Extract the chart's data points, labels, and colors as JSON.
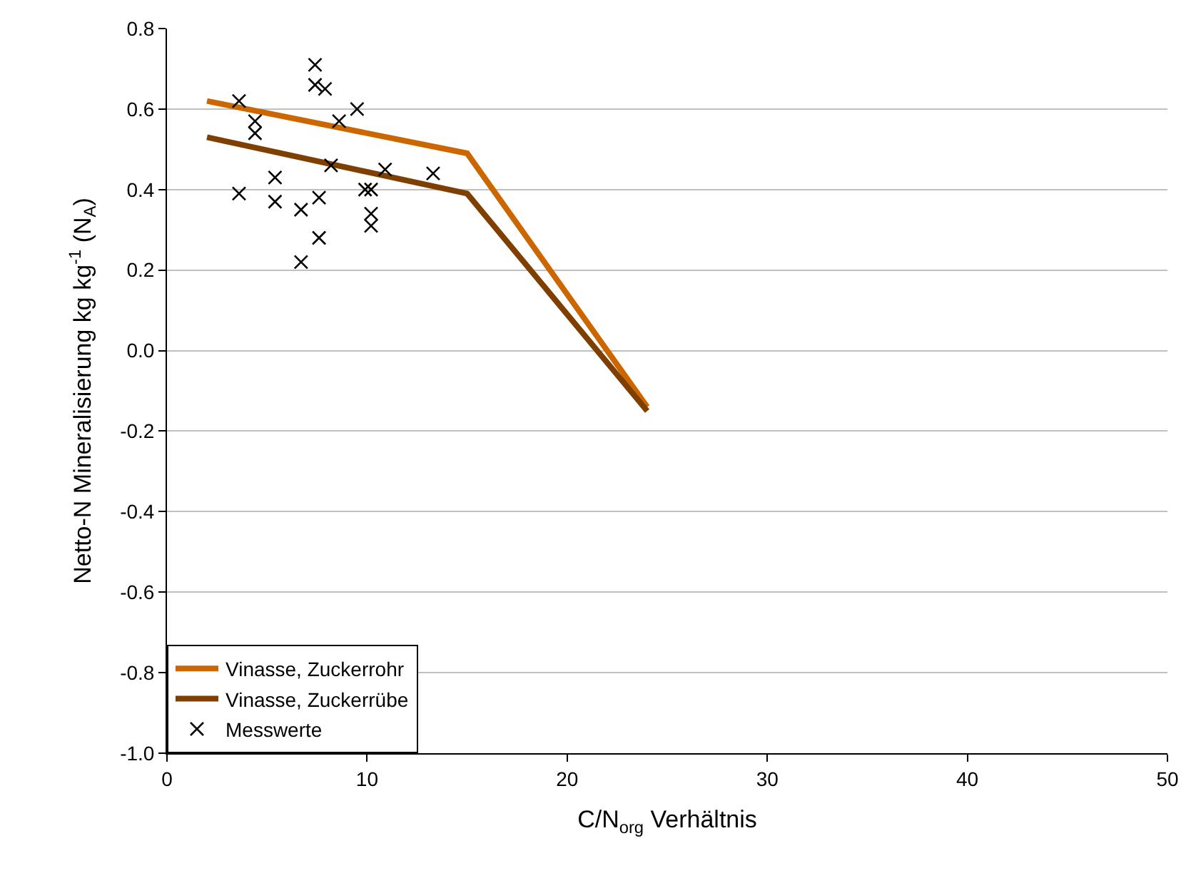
{
  "chart_data": {
    "type": "line",
    "xlabel": "C/N$_{org}$ Verhältnis",
    "ylabel": "Netto-N Mineralisierung kg kg$^{-1}$ (N$_{A}$)",
    "xlim": [
      0,
      50
    ],
    "xticks": [
      0,
      10,
      20,
      30,
      40,
      50
    ],
    "ylim": [
      -1.0,
      0.8
    ],
    "yticks": [
      {
        "value": -1.0,
        "label": "-1.0"
      },
      {
        "value": -0.8,
        "label": "-0.8"
      },
      {
        "value": -0.6,
        "label": "-0.6"
      },
      {
        "value": -0.4,
        "label": "-0.4"
      },
      {
        "value": -0.2,
        "label": "-0.2"
      },
      {
        "value": 0.0,
        "label": "0.0"
      },
      {
        "value": 0.2,
        "label": "0.2"
      },
      {
        "value": 0.4,
        "label": "0.4"
      },
      {
        "value": 0.6,
        "label": "0.6"
      },
      {
        "value": 0.8,
        "label": "0.8"
      }
    ],
    "grid": "y",
    "legend": "bottom left",
    "series": [
      {
        "name": "Vinasse, Zuckerrohr",
        "color": "#cc6600",
        "marker": "none",
        "line_style": "solid",
        "x": [
          2,
          15,
          24
        ],
        "values": [
          0.62,
          0.49,
          -0.14
        ]
      },
      {
        "name": "Vinasse, Zuckerrübe",
        "color": "#7f3f00",
        "marker": "none",
        "line_style": "solid",
        "x": [
          2,
          15,
          24
        ],
        "values": [
          0.53,
          0.39,
          -0.15
        ]
      },
      {
        "name": "Messwerte",
        "type": "scatter",
        "color": "#000000",
        "marker": "cross",
        "x": [
          7.4,
          7.4,
          7.9,
          3.6,
          4.4,
          4.4,
          9.5,
          8.6,
          8.2,
          10.9,
          13.3,
          5.4,
          3.6,
          5.4,
          7.6,
          9.9,
          10.2,
          6.7,
          10.2,
          10.2,
          7.6,
          6.7
        ],
        "values": [
          0.71,
          0.66,
          0.65,
          0.62,
          0.57,
          0.54,
          0.6,
          0.57,
          0.46,
          0.45,
          0.44,
          0.43,
          0.39,
          0.37,
          0.38,
          0.4,
          0.4,
          0.35,
          0.34,
          0.31,
          0.28,
          0.22
        ]
      }
    ]
  }
}
